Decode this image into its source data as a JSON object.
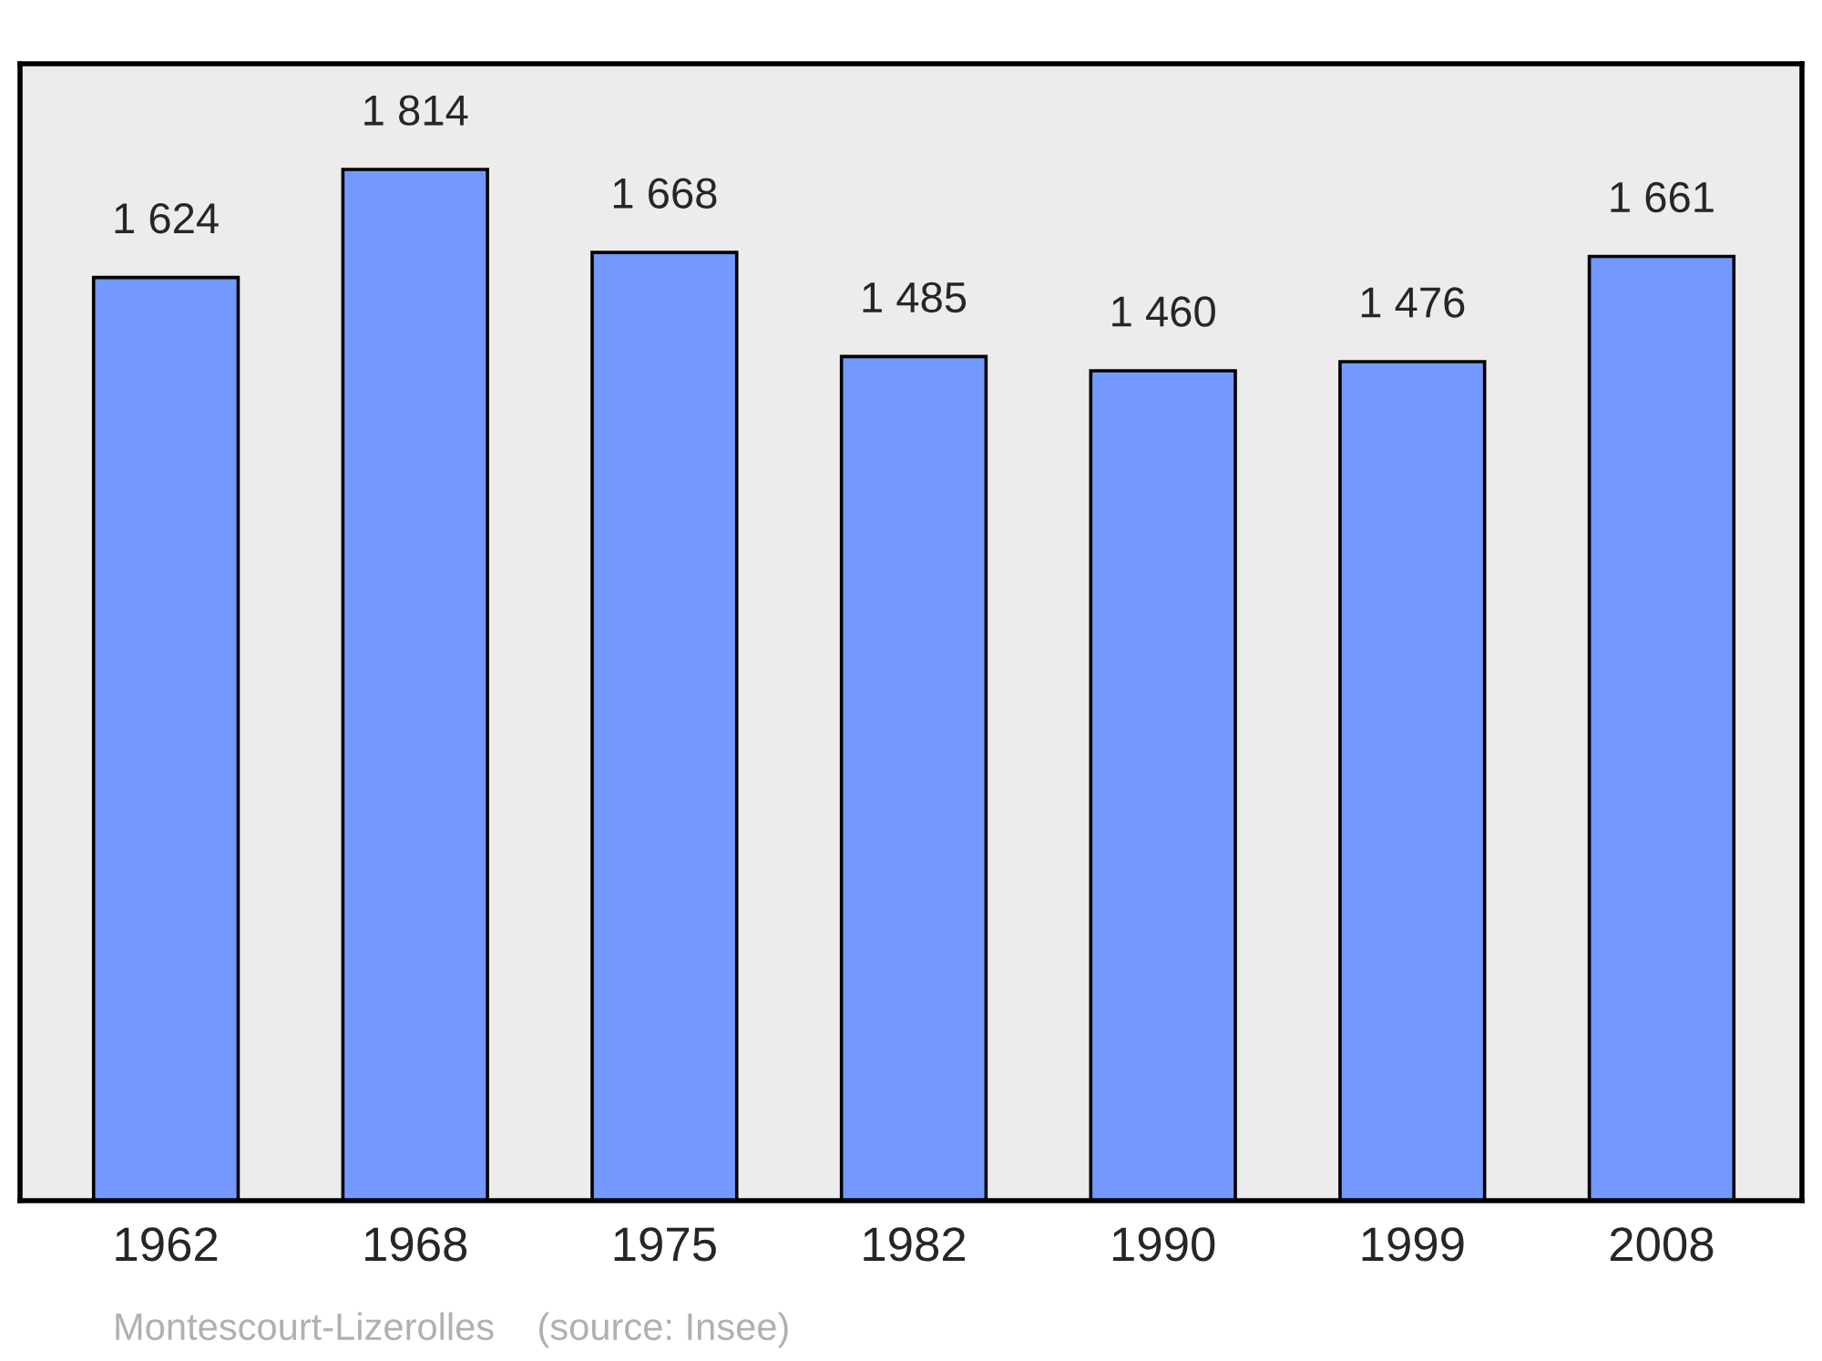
{
  "chart_data": {
    "type": "bar",
    "categories": [
      "1962",
      "1968",
      "1975",
      "1982",
      "1990",
      "1999",
      "2008"
    ],
    "values": [
      1624,
      1814,
      1668,
      1485,
      1460,
      1476,
      1661
    ],
    "value_labels": [
      "1 624",
      "1 814",
      "1 668",
      "1 485",
      "1 460",
      "1 476",
      "1 661"
    ],
    "color": "#7399ff",
    "ylim": [
      0,
      2000
    ],
    "tick_labels": "x",
    "grid": false,
    "legend": false,
    "annotations": [
      "Montescourt-Lizerolles    (source: Insee)"
    ]
  }
}
